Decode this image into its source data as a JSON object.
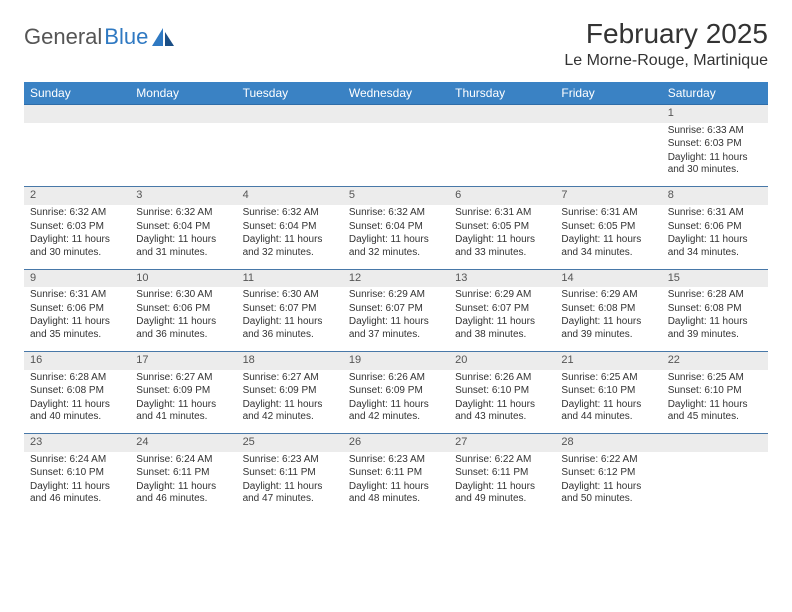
{
  "logo": {
    "text1": "General",
    "text2": "Blue"
  },
  "header": {
    "month_title": "February 2025",
    "location": "Le Morne-Rouge, Martinique"
  },
  "colors": {
    "header_bg": "#3a82c4",
    "header_text": "#ffffff",
    "daynum_bg": "#ececec",
    "row_border": "#4878a8",
    "logo_blue": "#2f79c2"
  },
  "weekdays": [
    "Sunday",
    "Monday",
    "Tuesday",
    "Wednesday",
    "Thursday",
    "Friday",
    "Saturday"
  ],
  "weeks": [
    [
      null,
      null,
      null,
      null,
      null,
      null,
      {
        "d": "1",
        "r": "6:33 AM",
        "s": "6:03 PM",
        "dl": "11 hours and 30 minutes."
      }
    ],
    [
      {
        "d": "2",
        "r": "6:32 AM",
        "s": "6:03 PM",
        "dl": "11 hours and 30 minutes."
      },
      {
        "d": "3",
        "r": "6:32 AM",
        "s": "6:04 PM",
        "dl": "11 hours and 31 minutes."
      },
      {
        "d": "4",
        "r": "6:32 AM",
        "s": "6:04 PM",
        "dl": "11 hours and 32 minutes."
      },
      {
        "d": "5",
        "r": "6:32 AM",
        "s": "6:04 PM",
        "dl": "11 hours and 32 minutes."
      },
      {
        "d": "6",
        "r": "6:31 AM",
        "s": "6:05 PM",
        "dl": "11 hours and 33 minutes."
      },
      {
        "d": "7",
        "r": "6:31 AM",
        "s": "6:05 PM",
        "dl": "11 hours and 34 minutes."
      },
      {
        "d": "8",
        "r": "6:31 AM",
        "s": "6:06 PM",
        "dl": "11 hours and 34 minutes."
      }
    ],
    [
      {
        "d": "9",
        "r": "6:31 AM",
        "s": "6:06 PM",
        "dl": "11 hours and 35 minutes."
      },
      {
        "d": "10",
        "r": "6:30 AM",
        "s": "6:06 PM",
        "dl": "11 hours and 36 minutes."
      },
      {
        "d": "11",
        "r": "6:30 AM",
        "s": "6:07 PM",
        "dl": "11 hours and 36 minutes."
      },
      {
        "d": "12",
        "r": "6:29 AM",
        "s": "6:07 PM",
        "dl": "11 hours and 37 minutes."
      },
      {
        "d": "13",
        "r": "6:29 AM",
        "s": "6:07 PM",
        "dl": "11 hours and 38 minutes."
      },
      {
        "d": "14",
        "r": "6:29 AM",
        "s": "6:08 PM",
        "dl": "11 hours and 39 minutes."
      },
      {
        "d": "15",
        "r": "6:28 AM",
        "s": "6:08 PM",
        "dl": "11 hours and 39 minutes."
      }
    ],
    [
      {
        "d": "16",
        "r": "6:28 AM",
        "s": "6:08 PM",
        "dl": "11 hours and 40 minutes."
      },
      {
        "d": "17",
        "r": "6:27 AM",
        "s": "6:09 PM",
        "dl": "11 hours and 41 minutes."
      },
      {
        "d": "18",
        "r": "6:27 AM",
        "s": "6:09 PM",
        "dl": "11 hours and 42 minutes."
      },
      {
        "d": "19",
        "r": "6:26 AM",
        "s": "6:09 PM",
        "dl": "11 hours and 42 minutes."
      },
      {
        "d": "20",
        "r": "6:26 AM",
        "s": "6:10 PM",
        "dl": "11 hours and 43 minutes."
      },
      {
        "d": "21",
        "r": "6:25 AM",
        "s": "6:10 PM",
        "dl": "11 hours and 44 minutes."
      },
      {
        "d": "22",
        "r": "6:25 AM",
        "s": "6:10 PM",
        "dl": "11 hours and 45 minutes."
      }
    ],
    [
      {
        "d": "23",
        "r": "6:24 AM",
        "s": "6:10 PM",
        "dl": "11 hours and 46 minutes."
      },
      {
        "d": "24",
        "r": "6:24 AM",
        "s": "6:11 PM",
        "dl": "11 hours and 46 minutes."
      },
      {
        "d": "25",
        "r": "6:23 AM",
        "s": "6:11 PM",
        "dl": "11 hours and 47 minutes."
      },
      {
        "d": "26",
        "r": "6:23 AM",
        "s": "6:11 PM",
        "dl": "11 hours and 48 minutes."
      },
      {
        "d": "27",
        "r": "6:22 AM",
        "s": "6:11 PM",
        "dl": "11 hours and 49 minutes."
      },
      {
        "d": "28",
        "r": "6:22 AM",
        "s": "6:12 PM",
        "dl": "11 hours and 50 minutes."
      },
      null
    ]
  ],
  "labels": {
    "sunrise": "Sunrise:",
    "sunset": "Sunset:",
    "daylight": "Daylight:"
  }
}
